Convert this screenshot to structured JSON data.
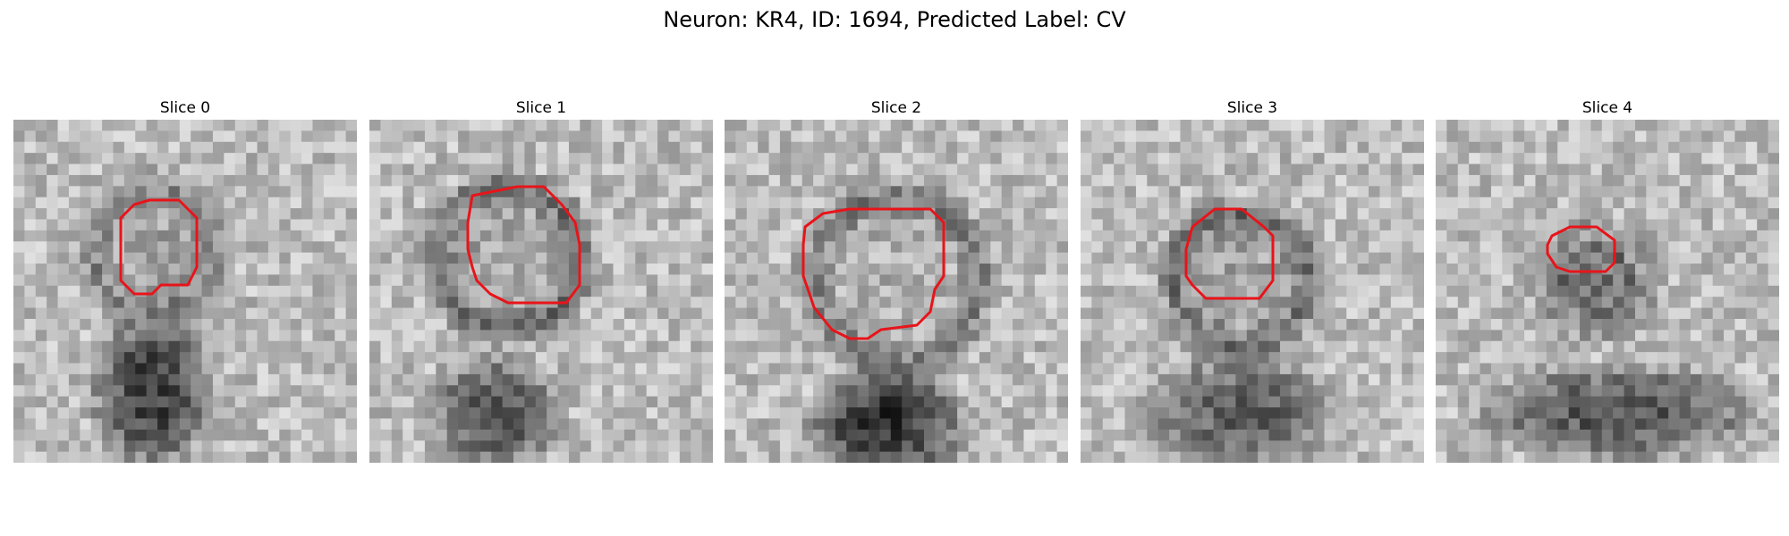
{
  "figure": {
    "title": "Neuron: KR4, ID: 1694, Predicted Label: CV"
  },
  "panels": [
    {
      "label": "Slice 0"
    },
    {
      "label": "Slice 1"
    },
    {
      "label": "Slice 2"
    },
    {
      "label": "Slice 3"
    },
    {
      "label": "Slice 4"
    }
  ],
  "colors": {
    "contour": "#e8141a",
    "background": "#ffffff"
  }
}
